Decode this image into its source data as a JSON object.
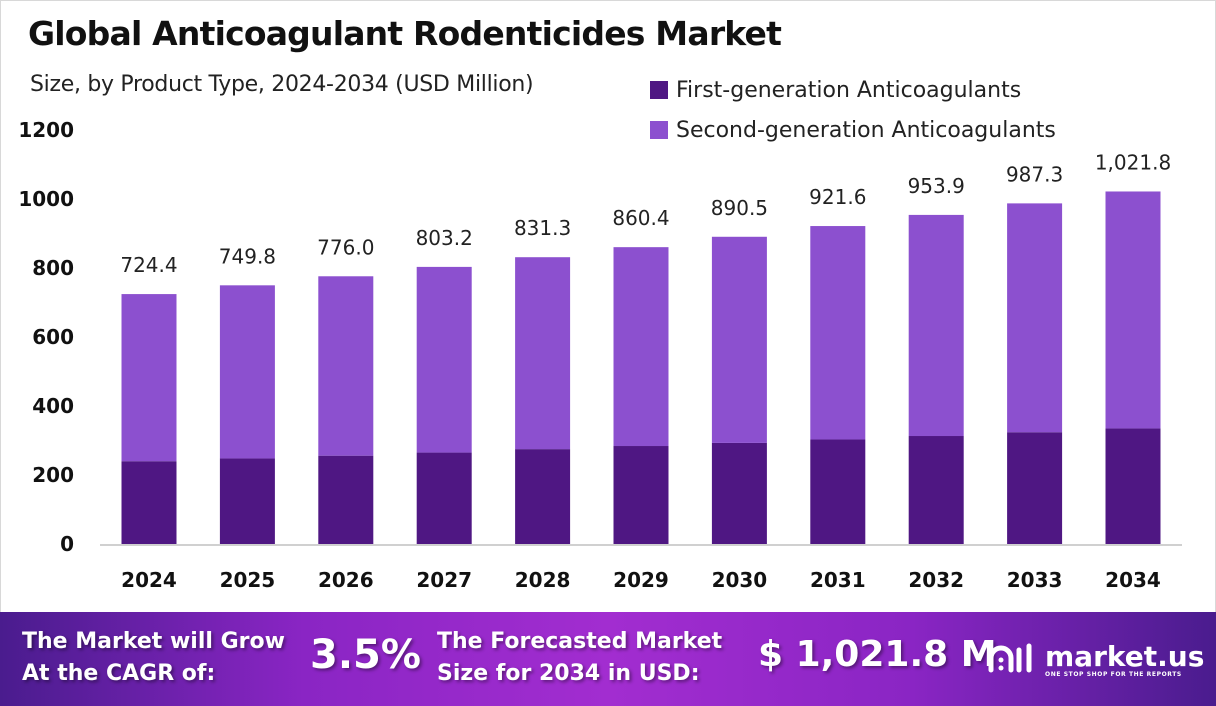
{
  "chart_data": {
    "type": "bar",
    "stacked": true,
    "title": "Global Anticoagulant Rodenticides Market",
    "subtitle": "Size, by Product Type, 2024-2034 (USD Million)",
    "categories": [
      "2024",
      "2025",
      "2026",
      "2027",
      "2028",
      "2029",
      "2030",
      "2031",
      "2032",
      "2033",
      "2034"
    ],
    "series": [
      {
        "name": "First-generation Anticoagulants",
        "color": "#4f1783",
        "values": [
          240,
          248,
          256,
          265,
          275,
          284,
          293,
          303,
          313,
          324,
          335
        ]
      },
      {
        "name": "Second-generation Anticoagulants",
        "color": "#8c50cf",
        "values": [
          484.4,
          501.8,
          520.0,
          538.2,
          556.3,
          576.4,
          597.5,
          618.6,
          640.9,
          663.3,
          686.8
        ]
      }
    ],
    "totals": [
      "724.4",
      "749.8",
      "776.0",
      "803.2",
      "831.3",
      "860.4",
      "890.5",
      "921.6",
      "953.9",
      "987.3",
      "1,021.8"
    ],
    "yticks": [
      "0",
      "200",
      "400",
      "600",
      "800",
      "1000",
      "1200"
    ],
    "ylim": [
      0,
      1200
    ],
    "grid": false,
    "legend": "top-right"
  },
  "banner": {
    "cagr_label": [
      "The Market will Grow",
      "At the CAGR of:"
    ],
    "cagr_value": "3.5%",
    "forecast_label": [
      "The Forecasted Market",
      "Size for 2034 in USD:"
    ],
    "forecast_value": "$ 1,021.8 M",
    "logo_name": "market.us",
    "logo_tagline": "ONE STOP SHOP FOR THE REPORTS"
  }
}
